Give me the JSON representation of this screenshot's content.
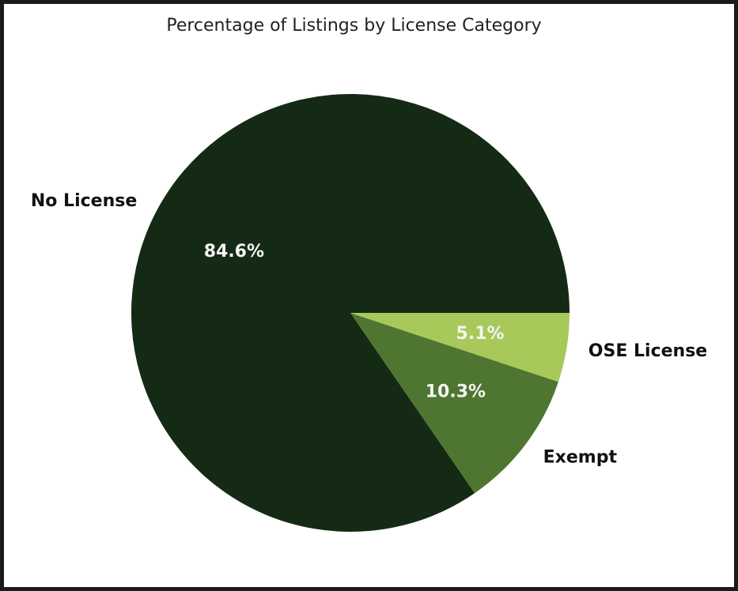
{
  "chart_data": {
    "type": "pie",
    "title": "Percentage of Listings by License Category",
    "slices": [
      {
        "label": "No License",
        "value": 84.6,
        "pct_label": "84.6%",
        "color": "#142a14"
      },
      {
        "label": "Exempt",
        "value": 10.3,
        "pct_label": "10.3%",
        "color": "#4f7630"
      },
      {
        "label": "OSE License",
        "value": 5.1,
        "pct_label": "5.1%",
        "color": "#a7c95a"
      }
    ]
  }
}
